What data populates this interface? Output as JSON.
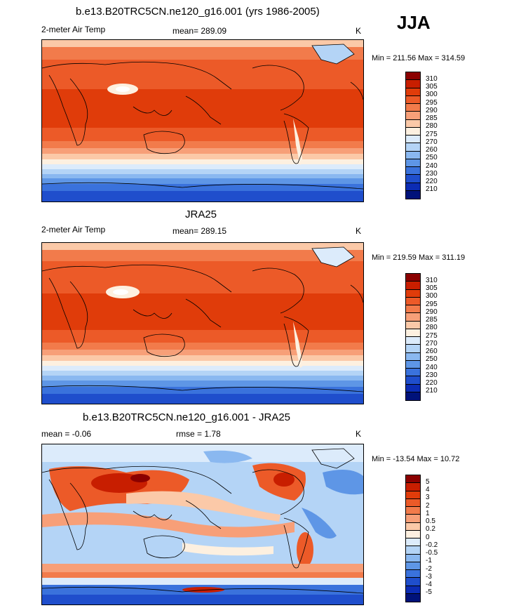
{
  "season": "JJA",
  "panels": [
    {
      "title": "b.e13.B20TRC5CN.ne120_g16.001 (yrs 1986-2005)",
      "variable": "2-meter Air Temp",
      "mean": "mean= 289.09",
      "units": "K",
      "minmax": "Min = 211.56 Max = 314.59"
    },
    {
      "title": "JRA25",
      "variable": "2-meter Air Temp",
      "mean": "mean= 289.15",
      "units": "K",
      "minmax": "Min = 219.59 Max = 311.19"
    },
    {
      "title": "b.e13.B20TRC5CN.ne120_g16.001 - JRA25",
      "mean": "mean =  -0.06",
      "rmse": "rmse =   1.78",
      "units": "K",
      "minmax": "Min = -13.54 Max =  10.72"
    }
  ],
  "temp_scale": {
    "levels": [
      "310",
      "305",
      "300",
      "295",
      "290",
      "285",
      "280",
      "275",
      "270",
      "260",
      "250",
      "240",
      "230",
      "220",
      "210"
    ],
    "colors": [
      "#8b0000",
      "#c81e00",
      "#e03c0a",
      "#ec5a28",
      "#f27b4b",
      "#f79f78",
      "#fbc9a8",
      "#fdf0e0",
      "#dcebfb",
      "#b4d4f6",
      "#8ab8f0",
      "#5e96e6",
      "#3a72dc",
      "#1f4ecc",
      "#0c2cb4",
      "#00127a"
    ]
  },
  "diff_scale": {
    "levels": [
      "5",
      "4",
      "3",
      "2",
      "1",
      "0.5",
      "0.2",
      "0",
      "-0.2",
      "-0.5",
      "-1",
      "-2",
      "-3",
      "-4",
      "-5"
    ],
    "colors": [
      "#8b0000",
      "#c81e00",
      "#e03c0a",
      "#ec5a28",
      "#f27b4b",
      "#f79f78",
      "#fbc9a8",
      "#fdf0e0",
      "#dcebfb",
      "#b4d4f6",
      "#8ab8f0",
      "#5e96e6",
      "#3a72dc",
      "#1f4ecc",
      "#0c2cb4",
      "#00127a"
    ]
  }
}
